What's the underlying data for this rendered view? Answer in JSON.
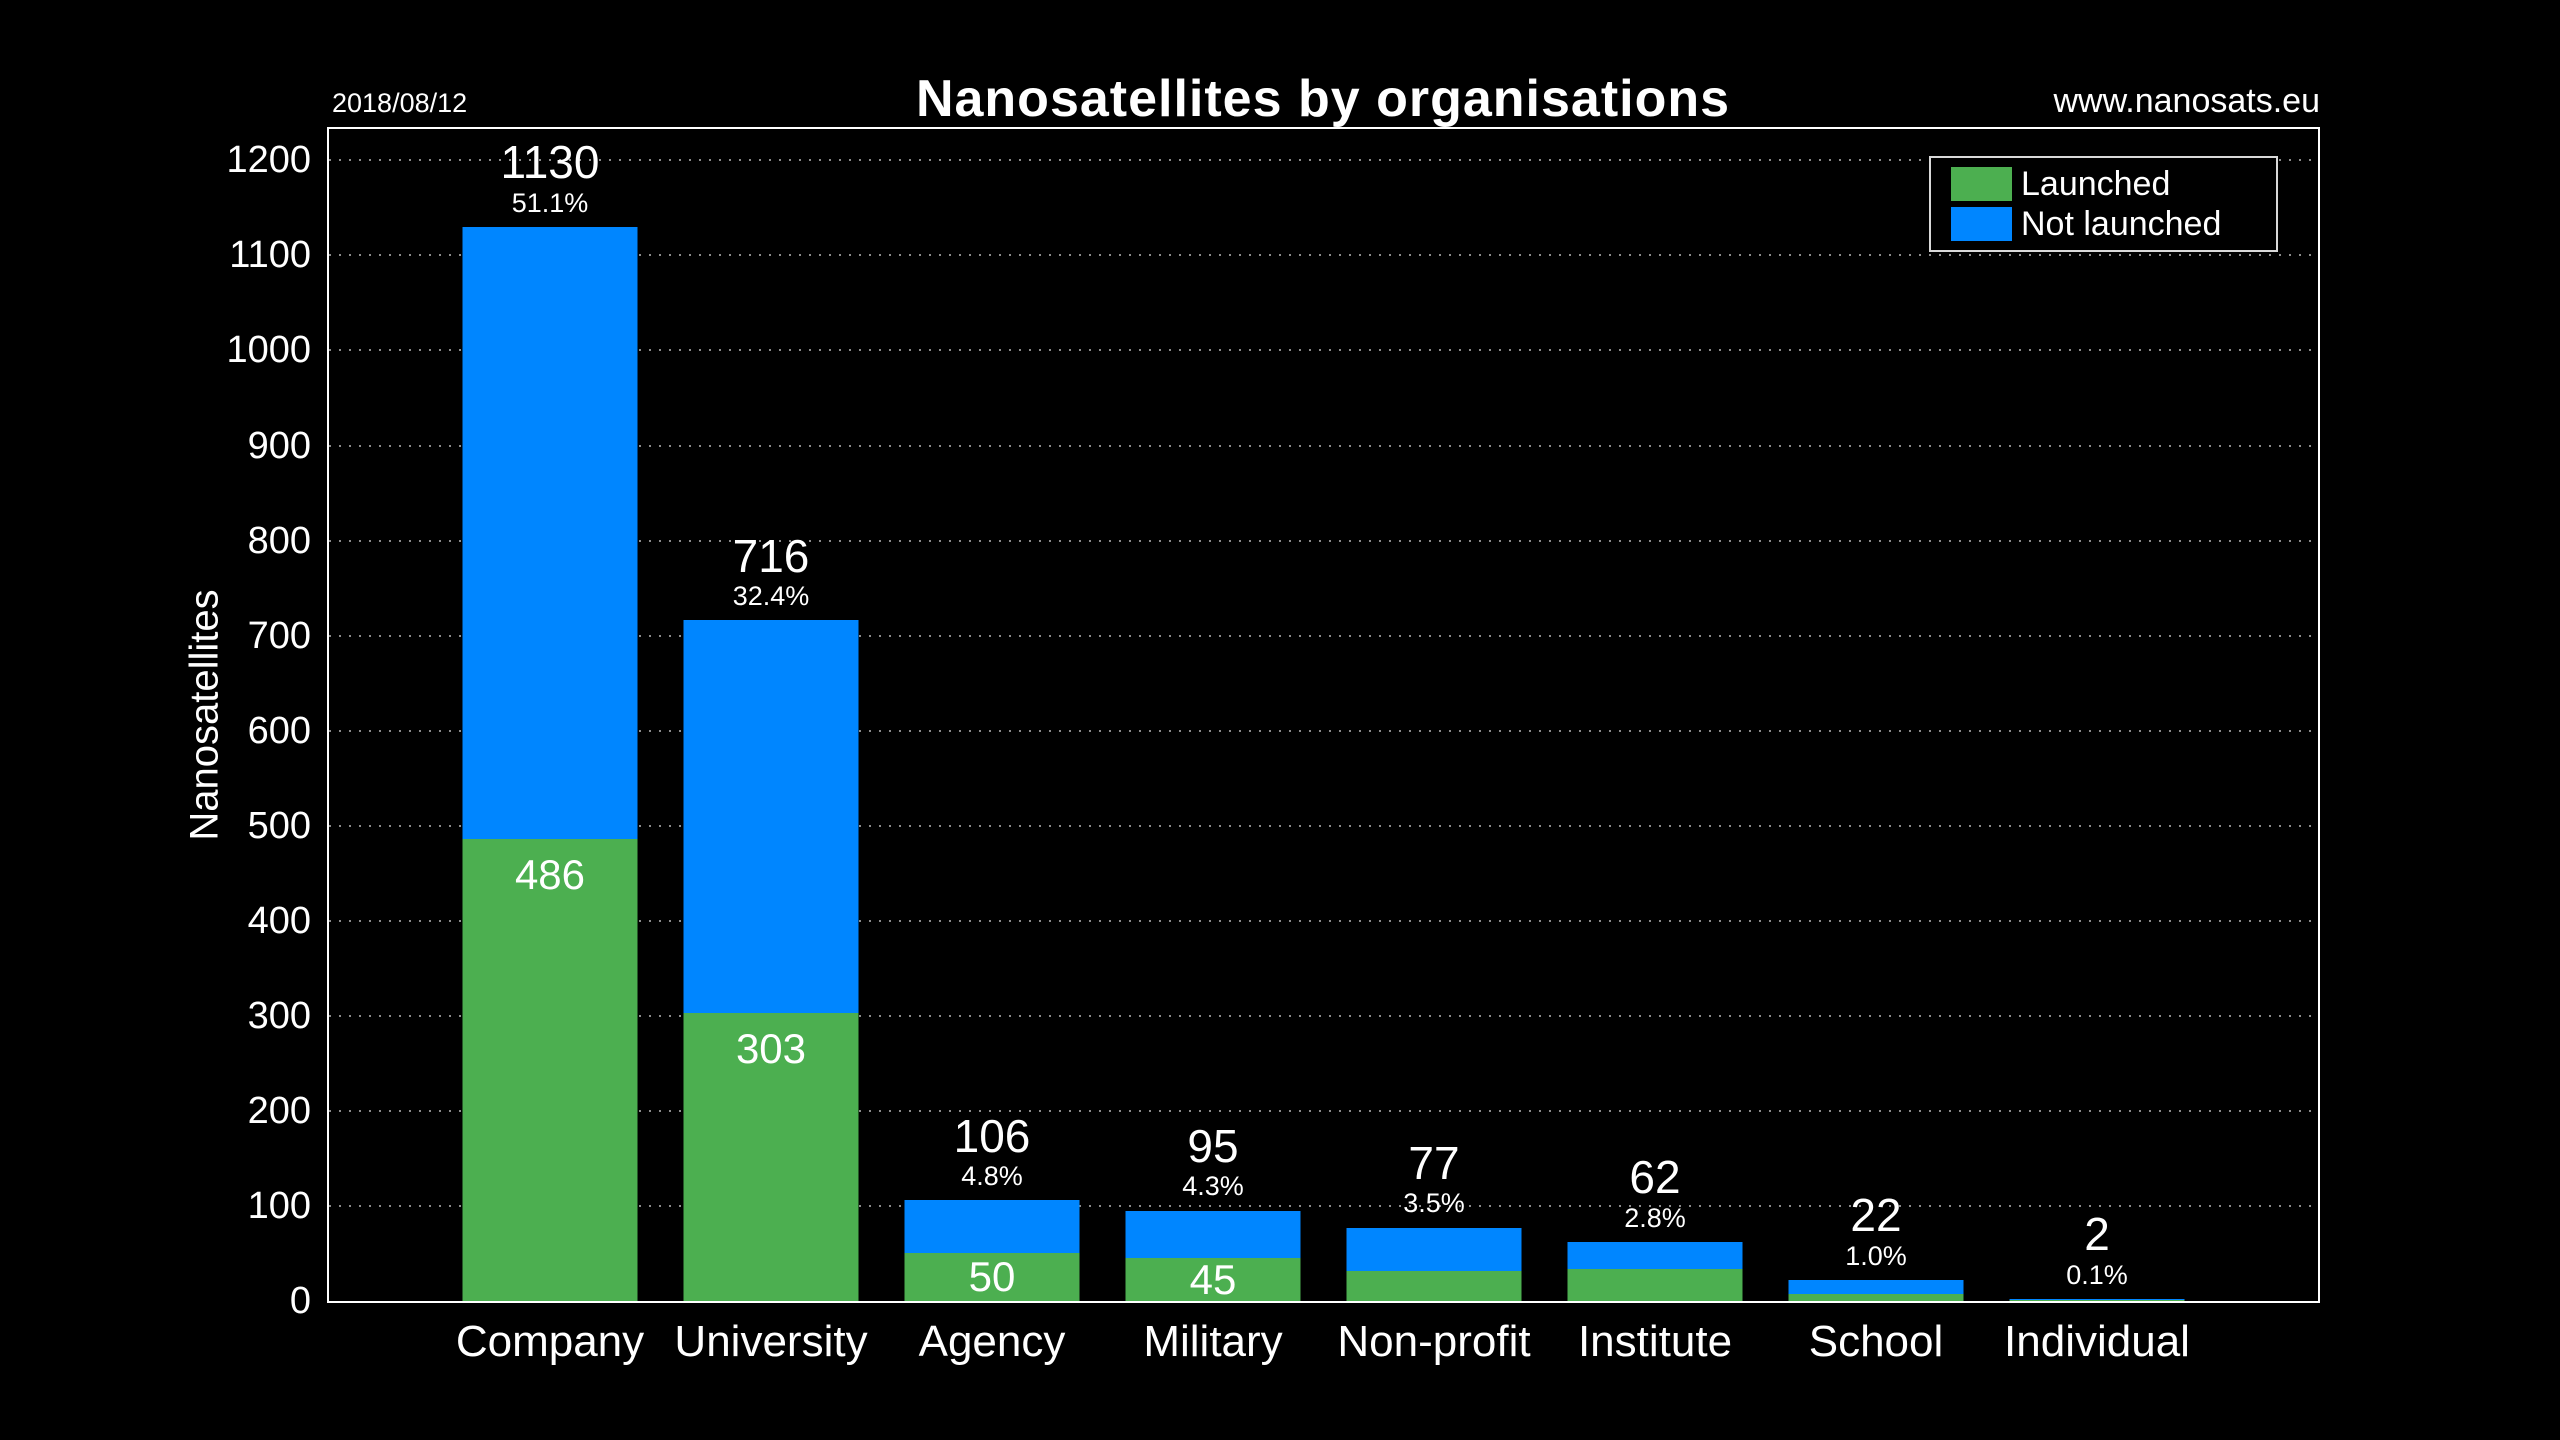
{
  "page": {
    "background": "#000000",
    "text_color": "#ffffff"
  },
  "header": {
    "date": "2018/08/12",
    "title": "Nanosatellites by organisations",
    "website": "www.nanosats.eu"
  },
  "legend": {
    "position": "upper right",
    "items": [
      {
        "label": "Launched",
        "color": "#4caf50"
      },
      {
        "label": "Not launched",
        "color": "#0086ff"
      }
    ]
  },
  "chart_data": {
    "type": "bar",
    "stacked": true,
    "title": "Nanosatellites by organisations",
    "xlabel": "",
    "ylabel": "Nanosatellites",
    "ylim": [
      0,
      1233
    ],
    "yticks": [
      0,
      100,
      200,
      300,
      400,
      500,
      600,
      700,
      800,
      900,
      1000,
      1100,
      1200
    ],
    "grid": "dotted horizontal white",
    "legend_position": "upper right",
    "categories": [
      "Company",
      "University",
      "Agency",
      "Military",
      "Non-profit",
      "Institute",
      "School",
      "Individual"
    ],
    "series": [
      {
        "name": "Launched",
        "color": "#4caf50",
        "values": [
          486,
          303,
          50,
          45,
          32,
          34,
          7,
          1
        ]
      },
      {
        "name": "Not launched",
        "color": "#0086ff",
        "values": [
          644,
          413,
          56,
          50,
          45,
          28,
          15,
          1
        ]
      }
    ],
    "totals": [
      1130,
      716,
      106,
      95,
      77,
      62,
      22,
      2
    ],
    "percent_labels": [
      "51.1%",
      "32.4%",
      "4.8%",
      "4.3%",
      "3.5%",
      "2.8%",
      "1.0%",
      "0.1%"
    ],
    "launched_labels": [
      "486",
      "303",
      "50",
      "45",
      "",
      "",
      "",
      ""
    ]
  }
}
